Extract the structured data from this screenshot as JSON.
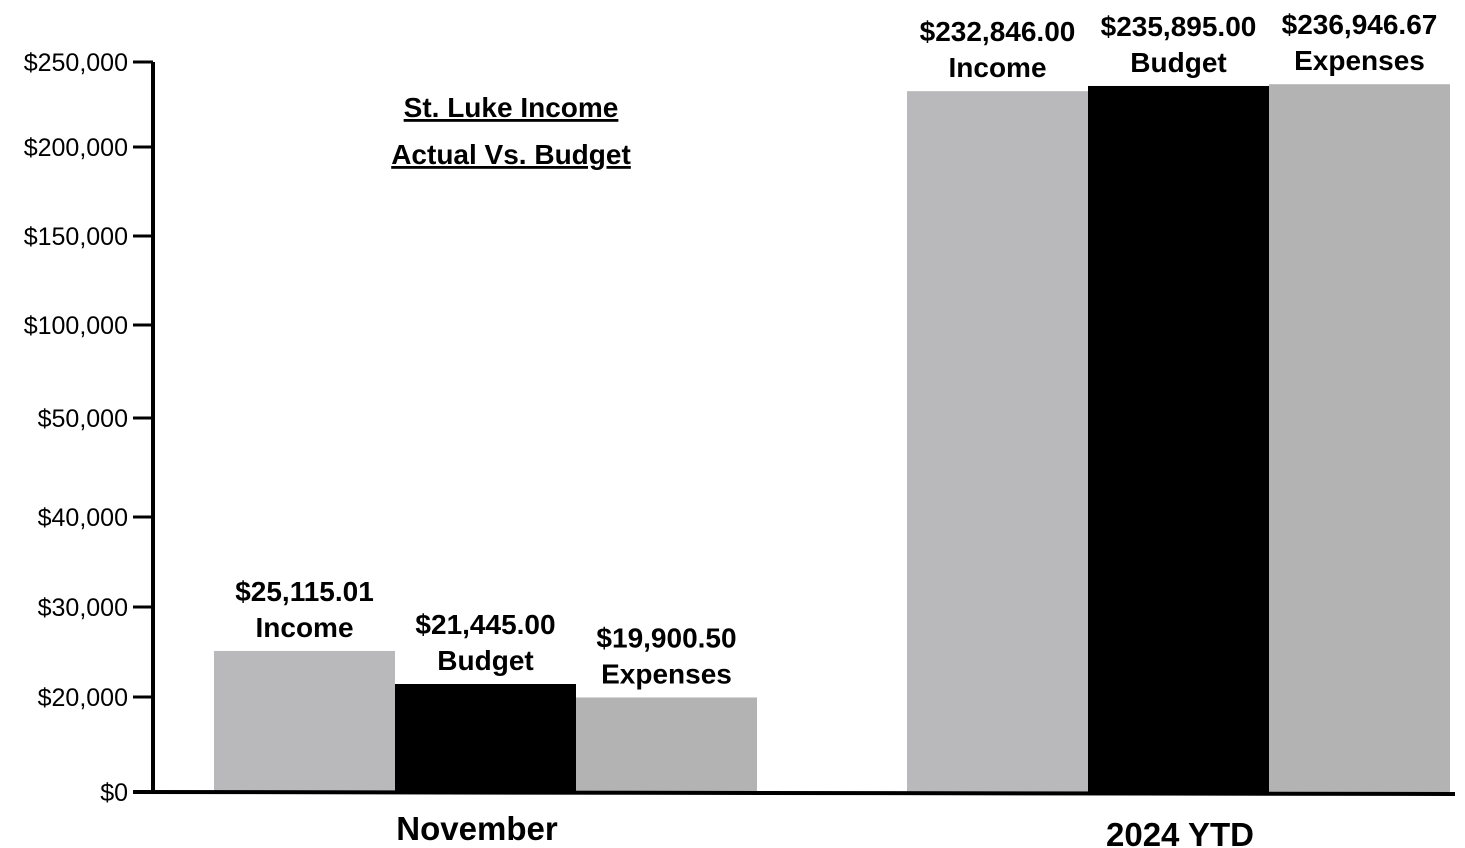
{
  "chart_data": {
    "type": "bar",
    "title": [
      "St. Luke Income",
      "Actual Vs. Budget"
    ],
    "categories": [
      "November",
      "2024 YTD"
    ],
    "series": [
      {
        "name": "Income",
        "values": [
          25115.01,
          232846.0
        ],
        "labels": [
          "$25,115.01",
          "$232,846.00"
        ],
        "color": "#b9b9bc"
      },
      {
        "name": "Budget",
        "values": [
          21445.0,
          235895.0
        ],
        "labels": [
          "$21,445.00",
          "$235,895.00"
        ],
        "color": "#000000"
      },
      {
        "name": "Expenses",
        "values": [
          19900.5,
          236946.67
        ],
        "labels": [
          "$19,900.50",
          "$236,946.67"
        ],
        "color": "#b3b3b3"
      }
    ],
    "yticks": [
      {
        "value": 0,
        "label": "$0"
      },
      {
        "value": 20000,
        "label": "$20,000"
      },
      {
        "value": 30000,
        "label": "$30,000"
      },
      {
        "value": 40000,
        "label": "$40,000"
      },
      {
        "value": 50000,
        "label": "$50,000"
      },
      {
        "value": 100000,
        "label": "$100,000"
      },
      {
        "value": 150000,
        "label": "$150,000"
      },
      {
        "value": 200000,
        "label": "$200,000"
      },
      {
        "value": 250000,
        "label": "$250,000"
      }
    ],
    "xlabel": "",
    "ylabel": "",
    "ylim": [
      0,
      250000
    ],
    "grid": false,
    "legend": "none"
  }
}
